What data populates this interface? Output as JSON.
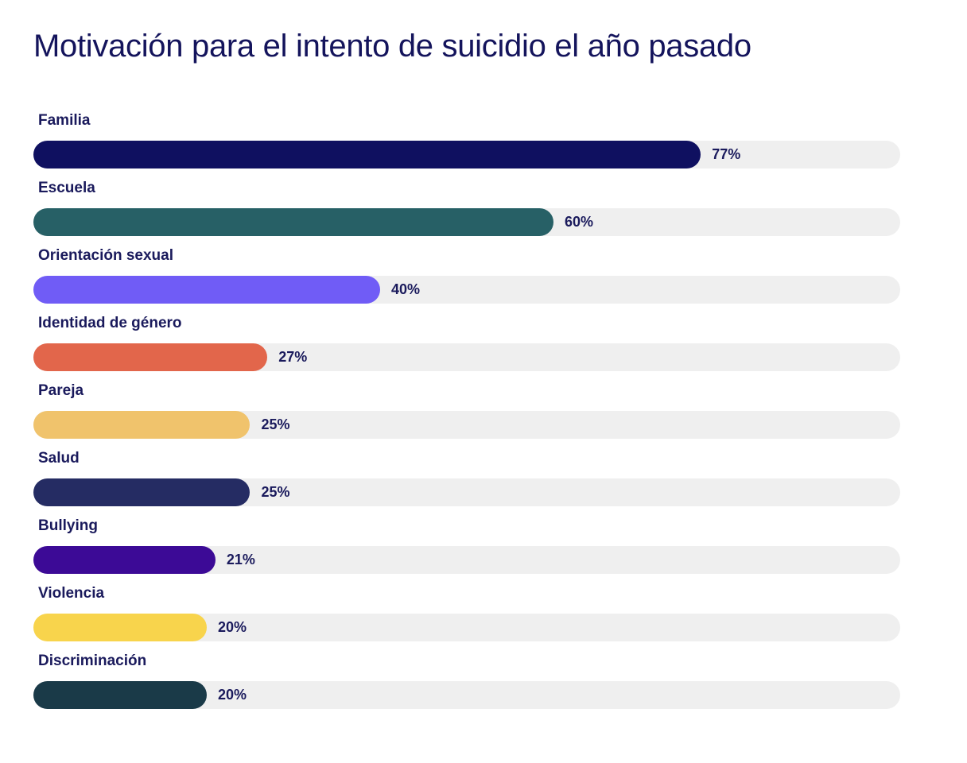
{
  "chart_data": {
    "type": "bar",
    "orientation": "horizontal",
    "title": "Motivación para el intento de suicidio el año pasado",
    "xlabel": "",
    "ylabel": "",
    "xlim": [
      0,
      100
    ],
    "grid": false,
    "categories": [
      "Familia",
      "Escuela",
      "Orientación sexual",
      "Identidad de género",
      "Pareja",
      "Salud",
      "Bullying",
      "Violencia",
      "Discriminación"
    ],
    "values": [
      77,
      60,
      40,
      27,
      25,
      25,
      21,
      20,
      20
    ],
    "value_labels": [
      "77%",
      "60%",
      "40%",
      "27%",
      "25%",
      "25%",
      "21%",
      "20%",
      "20%"
    ],
    "colors": [
      "#0f1060",
      "#276066",
      "#705cf6",
      "#e2664b",
      "#f0c36c",
      "#252c63",
      "#3c0a96",
      "#f8d44c",
      "#1a3a48"
    ],
    "track_color": "#efefef"
  }
}
